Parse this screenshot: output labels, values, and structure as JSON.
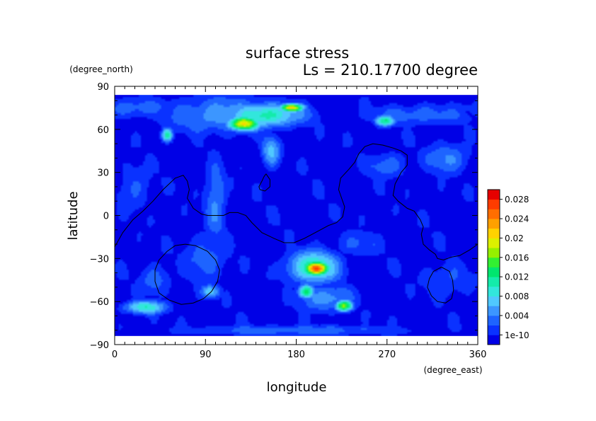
{
  "chart_data": {
    "type": "heatmap",
    "title": "surface stress",
    "subtitle": "Ls = 210.17700 degree",
    "xlabel": "longitude",
    "ylabel": "latitude",
    "xunits": "(degree_east)",
    "yunits": "(degree_north)",
    "xlim": [
      0,
      360
    ],
    "ylim": [
      -90,
      90
    ],
    "data_lat_range": [
      -84,
      84
    ],
    "xticks": [
      0,
      90,
      180,
      270,
      360
    ],
    "yticks": [
      90,
      60,
      30,
      0,
      -30,
      -60,
      -90
    ],
    "colorbar": {
      "tick_labels": [
        "0.028",
        "0.024",
        "0.02",
        "0.016",
        "0.012",
        "0.008",
        "0.004",
        "1e-10"
      ],
      "min": 0,
      "max": 0.03,
      "colors": [
        "#0000e6",
        "#0a32ff",
        "#1e64ff",
        "#3c96ff",
        "#50c8ff",
        "#32e6dc",
        "#14ebaa",
        "#00e66e",
        "#32f032",
        "#96f000",
        "#dcf000",
        "#ffd200",
        "#ffa000",
        "#ff6e00",
        "#ff3c00",
        "#e60000"
      ]
    },
    "background_level": 0.0013,
    "hotspots": [
      {
        "lon": 200,
        "lat": -37,
        "value": 0.028,
        "rlon": 12,
        "rlat": 5
      },
      {
        "lon": 197,
        "lat": -36,
        "value": 0.012,
        "rlon": 28,
        "rlat": 12
      },
      {
        "lon": 190,
        "lat": -53,
        "value": 0.016,
        "rlon": 8,
        "rlat": 5
      },
      {
        "lon": 227,
        "lat": -63,
        "value": 0.018,
        "rlon": 9,
        "rlat": 4
      },
      {
        "lon": 210,
        "lat": -58,
        "value": 0.007,
        "rlon": 30,
        "rlat": 10
      },
      {
        "lon": 175,
        "lat": 75,
        "value": 0.022,
        "rlon": 12,
        "rlat": 3
      },
      {
        "lon": 128,
        "lat": 64,
        "value": 0.021,
        "rlon": 16,
        "rlat": 5
      },
      {
        "lon": 150,
        "lat": 70,
        "value": 0.012,
        "rlon": 40,
        "rlat": 9
      },
      {
        "lon": 110,
        "lat": 70,
        "value": 0.007,
        "rlon": 65,
        "rlat": 14
      },
      {
        "lon": 155,
        "lat": 45,
        "value": 0.008,
        "rlon": 10,
        "rlat": 12
      },
      {
        "lon": 52,
        "lat": 56,
        "value": 0.012,
        "rlon": 6,
        "rlat": 5
      },
      {
        "lon": 268,
        "lat": 66,
        "value": 0.013,
        "rlon": 10,
        "rlat": 4
      },
      {
        "lon": 300,
        "lat": 70,
        "value": 0.005,
        "rlon": 60,
        "rlat": 8
      },
      {
        "lon": 20,
        "lat": 75,
        "value": 0.005,
        "rlon": 40,
        "rlat": 8
      },
      {
        "lon": 100,
        "lat": 10,
        "value": 0.006,
        "rlon": 12,
        "rlat": 30
      },
      {
        "lon": 90,
        "lat": -30,
        "value": 0.005,
        "rlon": 25,
        "rlat": 18
      },
      {
        "lon": 95,
        "lat": -53,
        "value": 0.009,
        "rlon": 10,
        "rlat": 5
      },
      {
        "lon": 30,
        "lat": -64,
        "value": 0.011,
        "rlon": 22,
        "rlat": 5
      },
      {
        "lon": 40,
        "lat": -45,
        "value": 0.005,
        "rlon": 18,
        "rlat": 12
      },
      {
        "lon": 330,
        "lat": 40,
        "value": 0.006,
        "rlon": 25,
        "rlat": 12
      },
      {
        "lon": 270,
        "lat": 35,
        "value": 0.005,
        "rlon": 25,
        "rlat": 10
      },
      {
        "lon": 180,
        "lat": -80,
        "value": 0.005,
        "rlon": 130,
        "rlat": 4
      },
      {
        "lon": 330,
        "lat": -45,
        "value": 0.004,
        "rlon": 30,
        "rlat": 15
      },
      {
        "lon": 20,
        "lat": 20,
        "value": 0.004,
        "rlon": 20,
        "rlat": 20
      },
      {
        "lon": 240,
        "lat": -20,
        "value": 0.004,
        "rlon": 30,
        "rlat": 10
      }
    ],
    "contours": [
      [
        [
          0,
          -22
        ],
        [
          8,
          -12
        ],
        [
          18,
          -3
        ],
        [
          28,
          3
        ],
        [
          38,
          10
        ],
        [
          48,
          18
        ],
        [
          60,
          26
        ],
        [
          68,
          28
        ],
        [
          72,
          24
        ],
        [
          74,
          18
        ],
        [
          72,
          12
        ],
        [
          78,
          5
        ],
        [
          86,
          1
        ],
        [
          92,
          0
        ],
        [
          100,
          0
        ],
        [
          108,
          0
        ],
        [
          114,
          2
        ],
        [
          122,
          2
        ],
        [
          130,
          0
        ],
        [
          136,
          -5
        ],
        [
          146,
          -12
        ],
        [
          158,
          -16
        ],
        [
          168,
          -19
        ],
        [
          178,
          -19
        ],
        [
          188,
          -16
        ],
        [
          196,
          -13
        ],
        [
          204,
          -10
        ],
        [
          212,
          -7
        ],
        [
          220,
          -5
        ],
        [
          226,
          -1
        ],
        [
          228,
          6
        ],
        [
          222,
          18
        ],
        [
          224,
          26
        ],
        [
          232,
          32
        ],
        [
          238,
          37
        ],
        [
          242,
          43
        ],
        [
          248,
          48
        ],
        [
          256,
          50
        ],
        [
          266,
          49
        ],
        [
          276,
          47
        ],
        [
          284,
          45
        ],
        [
          290,
          42
        ],
        [
          290,
          35
        ],
        [
          284,
          30
        ],
        [
          278,
          22
        ],
        [
          276,
          14
        ],
        [
          281,
          10
        ],
        [
          290,
          5
        ],
        [
          297,
          3
        ],
        [
          303,
          -3
        ],
        [
          306,
          -8
        ],
        [
          304,
          -13
        ],
        [
          306,
          -20
        ],
        [
          312,
          -24
        ],
        [
          318,
          -27
        ],
        [
          320,
          -30
        ],
        [
          326,
          -31
        ],
        [
          334,
          -29
        ],
        [
          342,
          -28
        ],
        [
          352,
          -24
        ],
        [
          360,
          -20
        ]
      ],
      [
        [
          150,
          29
        ],
        [
          148,
          27
        ],
        [
          146,
          24
        ],
        [
          143,
          20
        ],
        [
          144,
          18
        ],
        [
          149,
          17
        ],
        [
          154,
          20
        ],
        [
          154,
          25
        ],
        [
          150,
          29
        ]
      ],
      [
        [
          70,
          -20
        ],
        [
          80,
          -21
        ],
        [
          92,
          -25
        ],
        [
          100,
          -31
        ],
        [
          104,
          -38
        ],
        [
          102,
          -46
        ],
        [
          96,
          -53
        ],
        [
          88,
          -58
        ],
        [
          78,
          -61
        ],
        [
          66,
          -62
        ],
        [
          54,
          -59
        ],
        [
          44,
          -54
        ],
        [
          40,
          -46
        ],
        [
          40,
          -38
        ],
        [
          44,
          -31
        ],
        [
          52,
          -25
        ],
        [
          60,
          -21
        ],
        [
          70,
          -20
        ]
      ],
      [
        [
          324,
          -36
        ],
        [
          332,
          -39
        ],
        [
          335,
          -45
        ],
        [
          336,
          -52
        ],
        [
          334,
          -58
        ],
        [
          328,
          -61
        ],
        [
          320,
          -60
        ],
        [
          314,
          -56
        ],
        [
          310,
          -50
        ],
        [
          312,
          -44
        ],
        [
          316,
          -39
        ],
        [
          324,
          -36
        ]
      ]
    ]
  }
}
